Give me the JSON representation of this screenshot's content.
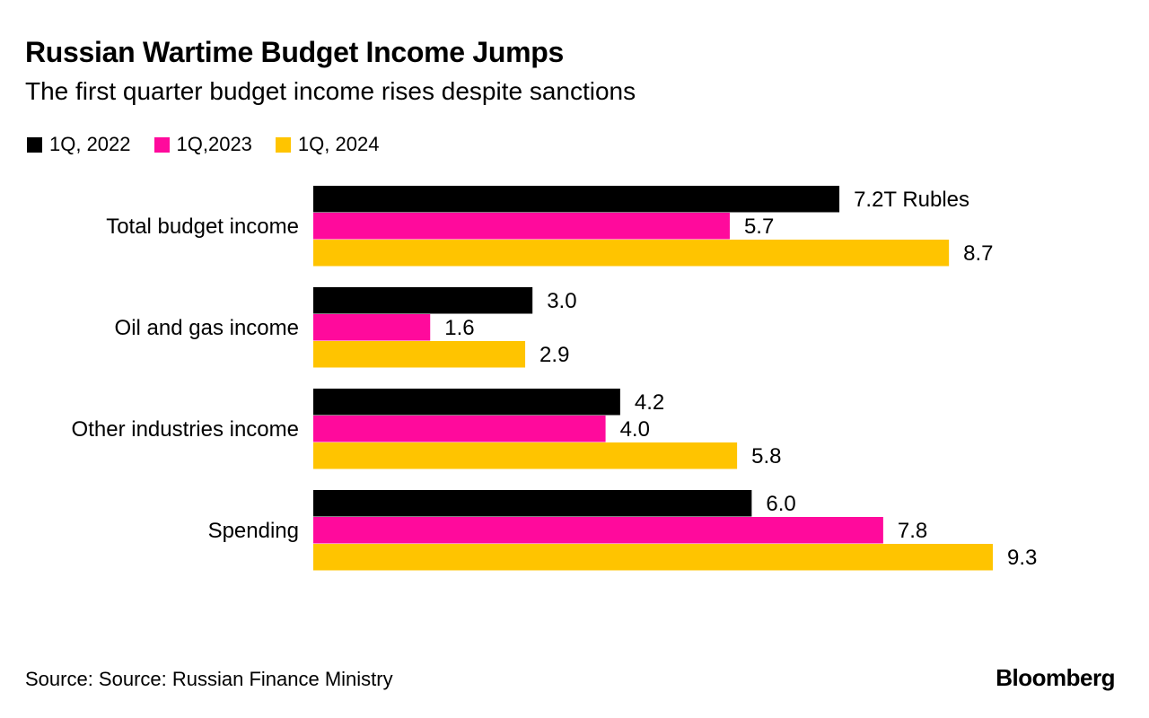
{
  "header": {
    "title": "Russian Wartime Budget Income Jumps",
    "subtitle": "The first quarter budget income rises despite sanctions"
  },
  "footer": {
    "source": "Source: Source: Russian Finance Ministry",
    "brand": "Bloomberg"
  },
  "chart_data": {
    "type": "bar",
    "orientation": "horizontal",
    "title": "Russian Wartime Budget Income Jumps",
    "subtitle": "The first quarter budget income rises despite sanctions",
    "categories": [
      "Total budget income",
      "Oil and gas income",
      "Other industries income",
      "Spending"
    ],
    "series": [
      {
        "name": "1Q, 2022",
        "color": "#000000",
        "values": [
          7.2,
          3.0,
          4.2,
          6.0
        ],
        "labels": [
          "7.2T Rubles",
          "3.0",
          "4.2",
          "6.0"
        ]
      },
      {
        "name": "1Q,2023",
        "color": "#ff0a9c",
        "values": [
          5.7,
          1.6,
          4.0,
          7.8
        ],
        "labels": [
          "5.7",
          "1.6",
          "4.0",
          "7.8"
        ]
      },
      {
        "name": "1Q, 2024",
        "color": "#ffc400",
        "values": [
          8.7,
          2.9,
          5.8,
          9.3
        ],
        "labels": [
          "8.7",
          "2.9",
          "5.8",
          "9.3"
        ]
      }
    ],
    "xlim": [
      0,
      9.3
    ],
    "grid": false,
    "legend": "top-left",
    "xlabel": "",
    "ylabel": ""
  }
}
